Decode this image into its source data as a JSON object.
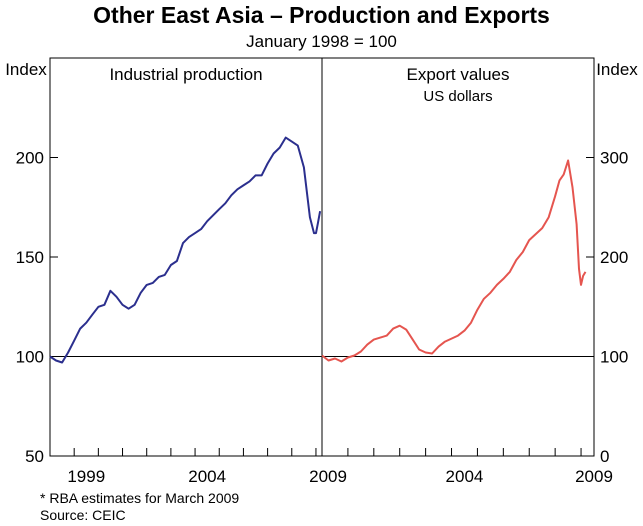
{
  "title": "Other East Asia – Production and Exports",
  "subtitle": "January 1998 = 100",
  "footnote": "*     RBA estimates for March 2009",
  "source": "Source: CEIC",
  "chart_data": [
    {
      "type": "line",
      "title": "Industrial production",
      "subtitle": "",
      "ylabel": "Index",
      "ylim": [
        50,
        250
      ],
      "yticks": [
        50,
        100,
        150,
        200
      ],
      "xlim": [
        1998.0,
        2009.25
      ],
      "xticks": [
        "1999",
        "2004",
        "2009"
      ],
      "grid": false,
      "reference_line": 100,
      "series": [
        {
          "color": "#2b2f8e",
          "x": [
            1998.0,
            1998.25,
            1998.5,
            1998.75,
            1999.0,
            1999.25,
            1999.5,
            1999.75,
            2000.0,
            2000.25,
            2000.5,
            2000.75,
            2001.0,
            2001.25,
            2001.5,
            2001.75,
            2002.0,
            2002.25,
            2002.5,
            2002.75,
            2003.0,
            2003.25,
            2003.5,
            2003.75,
            2004.0,
            2004.25,
            2004.5,
            2004.75,
            2005.0,
            2005.25,
            2005.5,
            2005.75,
            2006.0,
            2006.25,
            2006.5,
            2006.75,
            2007.0,
            2007.25,
            2007.5,
            2007.75,
            2008.0,
            2008.25,
            2008.5,
            2008.75,
            2008.92,
            2009.0,
            2009.08,
            2009.17
          ],
          "values": [
            100,
            98,
            97,
            102,
            108,
            114,
            117,
            121,
            125,
            126,
            133,
            130,
            126,
            124,
            126,
            132,
            136,
            137,
            140,
            141,
            146,
            148,
            157,
            160,
            162,
            164,
            168,
            171,
            174,
            177,
            181,
            184,
            186,
            188,
            191,
            191,
            197,
            202,
            205,
            210,
            208,
            206,
            195,
            170,
            162,
            162,
            167,
            173
          ]
        }
      ]
    },
    {
      "type": "line",
      "title": "Export values",
      "subtitle": "US dollars",
      "ylabel": "Index",
      "ylim": [
        0,
        400
      ],
      "yticks": [
        0,
        100,
        200,
        300
      ],
      "xlim": [
        1999.0,
        2009.5
      ],
      "xticks": [
        "2004",
        "2009"
      ],
      "grid": false,
      "reference_line": 100,
      "series": [
        {
          "color": "#e5554f",
          "x": [
            1999.0,
            1999.25,
            1999.5,
            1999.75,
            2000.0,
            2000.25,
            2000.5,
            2000.75,
            2001.0,
            2001.25,
            2001.5,
            2001.75,
            2002.0,
            2002.25,
            2002.5,
            2002.75,
            2003.0,
            2003.25,
            2003.5,
            2003.75,
            2004.0,
            2004.25,
            2004.5,
            2004.75,
            2005.0,
            2005.25,
            2005.5,
            2005.75,
            2006.0,
            2006.25,
            2006.5,
            2006.75,
            2007.0,
            2007.25,
            2007.5,
            2007.75,
            2008.0,
            2008.17,
            2008.33,
            2008.5,
            2008.67,
            2008.83,
            2008.92,
            2009.0,
            2009.08,
            2009.17
          ],
          "values": [
            101,
            96,
            98,
            95,
            99,
            101,
            105,
            112,
            117,
            119,
            121,
            128,
            131,
            127,
            117,
            107,
            104,
            103,
            110,
            115,
            118,
            121,
            126,
            134,
            147,
            158,
            164,
            172,
            178,
            185,
            197,
            205,
            217,
            223,
            229,
            240,
            261,
            277,
            283,
            297,
            270,
            233,
            188,
            172,
            181,
            185
          ]
        }
      ]
    }
  ]
}
